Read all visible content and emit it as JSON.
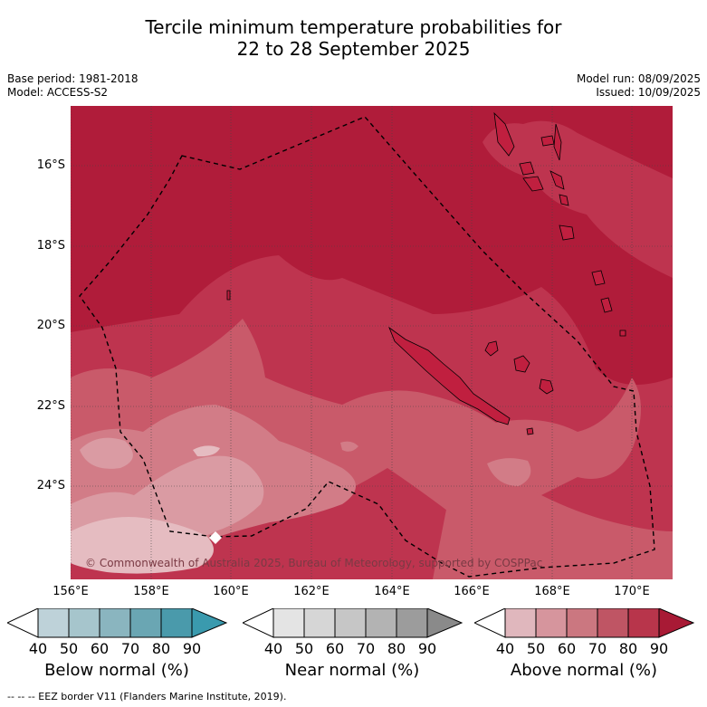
{
  "header": {
    "title_line1": "Tercile minimum temperature probabilities for",
    "title_line2": "22 to 28 September 2025",
    "base_period": "Base period: 1981-2018",
    "model": "Model: ACCESS-S2",
    "model_run": "Model run: 08/09/2025",
    "issued": "Issued: 10/09/2025"
  },
  "map": {
    "lat_labels": [
      "16°S",
      "18°S",
      "20°S",
      "22°S",
      "24°S"
    ],
    "lon_labels": [
      "156°E",
      "158°E",
      "160°E",
      "162°E",
      "164°E",
      "166°E",
      "168°E",
      "170°E"
    ],
    "copyright": "© Commonwealth of Australia 2025, Bureau of Meteorology, supported by COSPPac",
    "colors": {
      "above_90": "#b01c3a",
      "above_80": "#be344f",
      "above_70": "#c95a6a",
      "above_60": "#d27c87",
      "above_50": "#da9ba3",
      "above_40": "#e5bcc1"
    }
  },
  "legend": {
    "ticks": [
      "40",
      "50",
      "60",
      "70",
      "80",
      "90"
    ],
    "below": {
      "title": "Below normal (%)",
      "colors": [
        "#bed2d9",
        "#a6c5cc",
        "#8ab5bf",
        "#6aa6b3",
        "#4a9aab",
        "#3a9aae"
      ]
    },
    "near": {
      "title": "Near normal (%)",
      "colors": [
        "#e4e4e4",
        "#d6d6d6",
        "#c6c6c6",
        "#b3b3b3",
        "#9c9c9c",
        "#8a8a8a"
      ]
    },
    "above": {
      "title": "Above normal (%)",
      "colors": [
        "#e0b7bd",
        "#d6959d",
        "#cb7780",
        "#bf5564",
        "#b8354b",
        "#a81a35"
      ]
    }
  },
  "footnote": "--  --  -- EEZ border V11 (Flanders Marine Institute, 2019)."
}
